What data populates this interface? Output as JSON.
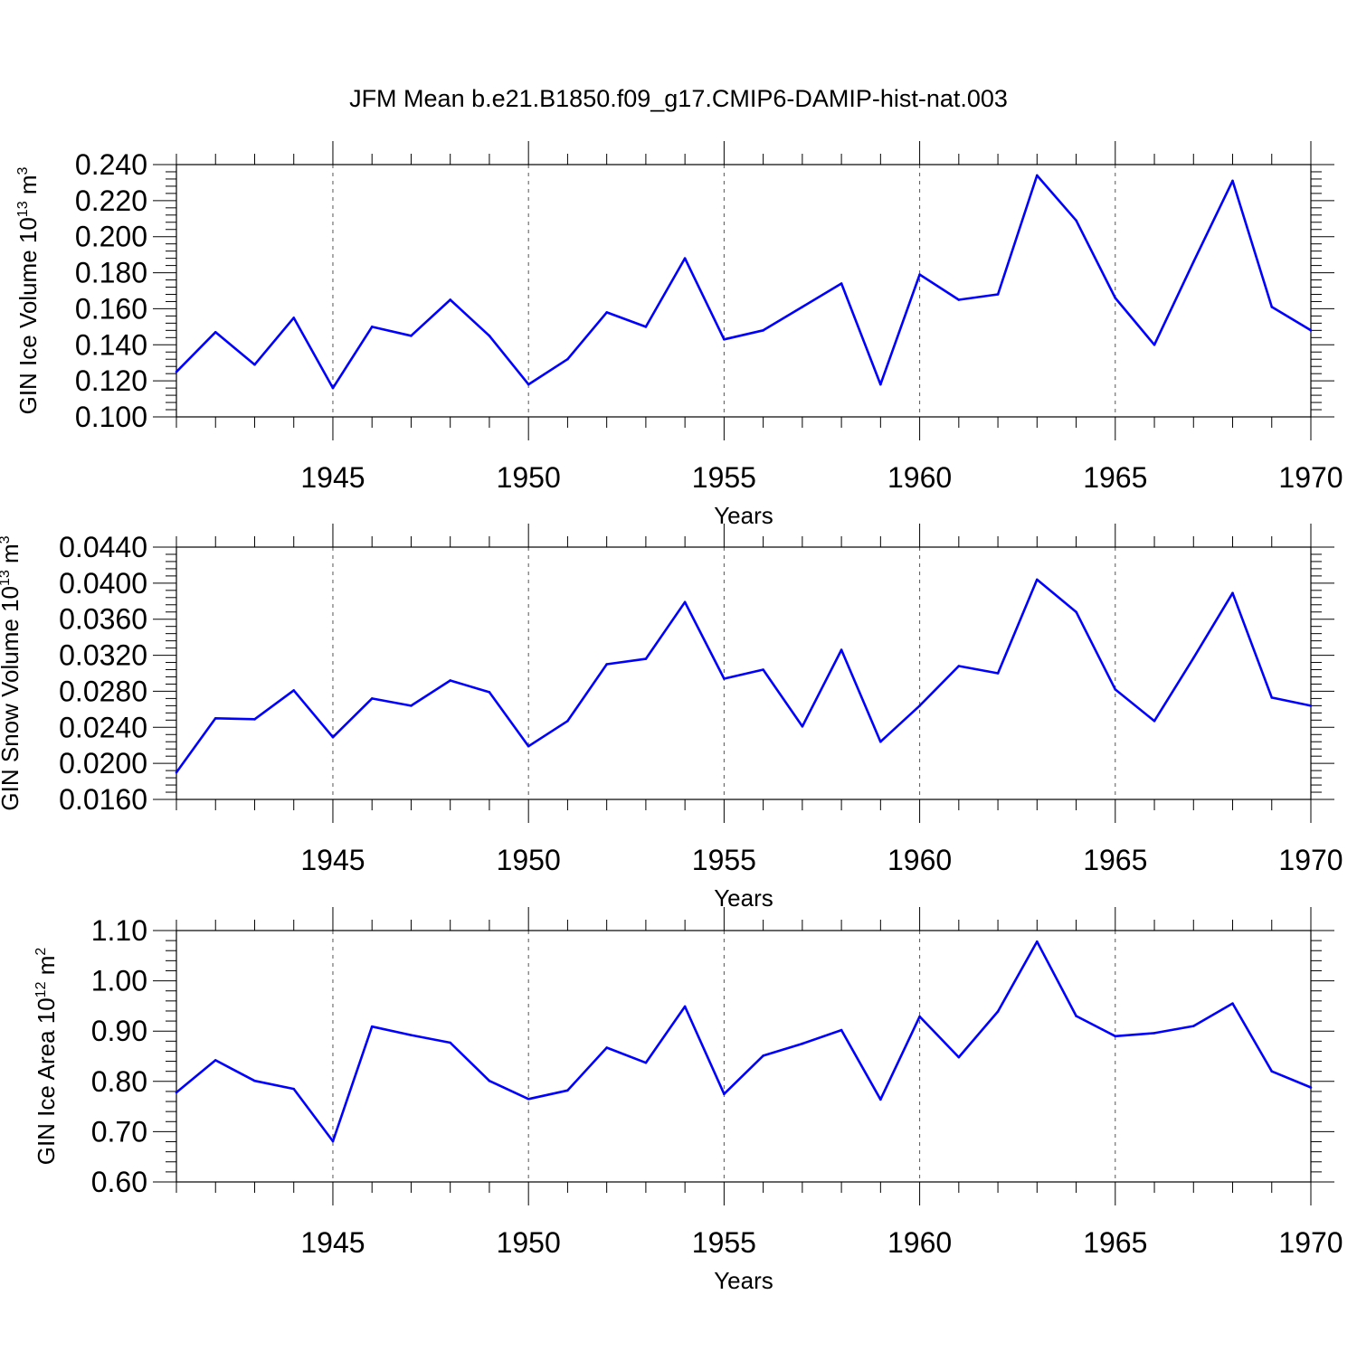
{
  "title": "JFM Mean b.e21.B1850.f09_g17.CMIP6-DAMIP-hist-nat.003",
  "line_color": "#0000ff",
  "chart_data": [
    {
      "type": "line",
      "ylabel_main": "GIN Ice Volume 10",
      "ylabel_exp": "13",
      "ylabel_unit": "m",
      "ylabel_unit_exp": "3",
      "xlabel": "Years",
      "xlim": [
        1941,
        1970
      ],
      "ylim": [
        0.1,
        0.24
      ],
      "yticks": [
        0.1,
        0.12,
        0.14,
        0.16,
        0.18,
        0.2,
        0.22,
        0.24
      ],
      "ytick_labels": [
        "0.100",
        "0.120",
        "0.140",
        "0.160",
        "0.180",
        "0.200",
        "0.220",
        "0.240"
      ],
      "xticks": [
        1945,
        1950,
        1955,
        1960,
        1965,
        1970
      ],
      "xtick_labels": [
        "1945",
        "1950",
        "1955",
        "1960",
        "1965",
        "1970"
      ],
      "x": [
        1941,
        1942,
        1943,
        1944,
        1945,
        1946,
        1947,
        1948,
        1949,
        1950,
        1951,
        1952,
        1953,
        1954,
        1955,
        1956,
        1957,
        1958,
        1959,
        1960,
        1961,
        1962,
        1963,
        1964,
        1965,
        1966,
        1967,
        1968,
        1969,
        1970
      ],
      "values": [
        0.125,
        0.147,
        0.129,
        0.155,
        0.116,
        0.15,
        0.145,
        0.165,
        0.145,
        0.118,
        0.132,
        0.158,
        0.15,
        0.188,
        0.143,
        0.148,
        0.161,
        0.174,
        0.118,
        0.179,
        0.165,
        0.168,
        0.234,
        0.209,
        0.166,
        0.14,
        0.186,
        0.231,
        0.161,
        0.148
      ]
    },
    {
      "type": "line",
      "ylabel_main": "GIN Snow Volume 10",
      "ylabel_exp": "13",
      "ylabel_unit": "m",
      "ylabel_unit_exp": "3",
      "xlabel": "Years",
      "xlim": [
        1941,
        1970
      ],
      "ylim": [
        0.016,
        0.044
      ],
      "yticks": [
        0.016,
        0.02,
        0.024,
        0.028,
        0.032,
        0.036,
        0.04,
        0.044
      ],
      "ytick_labels": [
        "0.0160",
        "0.0200",
        "0.0240",
        "0.0280",
        "0.0320",
        "0.0360",
        "0.0400",
        "0.0440"
      ],
      "xticks": [
        1945,
        1950,
        1955,
        1960,
        1965,
        1970
      ],
      "xtick_labels": [
        "1945",
        "1950",
        "1955",
        "1960",
        "1965",
        "1970"
      ],
      "x": [
        1941,
        1942,
        1943,
        1944,
        1945,
        1946,
        1947,
        1948,
        1949,
        1950,
        1951,
        1952,
        1953,
        1954,
        1955,
        1956,
        1957,
        1958,
        1959,
        1960,
        1961,
        1962,
        1963,
        1964,
        1965,
        1966,
        1967,
        1968,
        1969,
        1970
      ],
      "values": [
        0.019,
        0.025,
        0.0249,
        0.0281,
        0.0229,
        0.0272,
        0.0264,
        0.0292,
        0.0279,
        0.0219,
        0.0247,
        0.031,
        0.0316,
        0.0379,
        0.0294,
        0.0304,
        0.0241,
        0.0326,
        0.0224,
        0.0264,
        0.0308,
        0.03,
        0.0404,
        0.0368,
        0.0282,
        0.0247,
        0.0317,
        0.0389,
        0.0273,
        0.0264
      ]
    },
    {
      "type": "line",
      "ylabel_main": "GIN Ice Area 10",
      "ylabel_exp": "12",
      "ylabel_unit": "m",
      "ylabel_unit_exp": "2",
      "xlabel": "Years",
      "xlim": [
        1941,
        1970
      ],
      "ylim": [
        0.6,
        1.1
      ],
      "yticks": [
        0.6,
        0.7,
        0.8,
        0.9,
        1.0,
        1.1
      ],
      "ytick_labels": [
        "0.60",
        "0.70",
        "0.80",
        "0.90",
        "1.00",
        "1.10"
      ],
      "xticks": [
        1945,
        1950,
        1955,
        1960,
        1965,
        1970
      ],
      "xtick_labels": [
        "1945",
        "1950",
        "1955",
        "1960",
        "1965",
        "1970"
      ],
      "x": [
        1941,
        1942,
        1943,
        1944,
        1945,
        1946,
        1947,
        1948,
        1949,
        1950,
        1951,
        1952,
        1953,
        1954,
        1955,
        1956,
        1957,
        1958,
        1959,
        1960,
        1961,
        1962,
        1963,
        1964,
        1965,
        1966,
        1967,
        1968,
        1969,
        1970
      ],
      "values": [
        0.778,
        0.842,
        0.801,
        0.785,
        0.681,
        0.909,
        0.892,
        0.877,
        0.801,
        0.765,
        0.782,
        0.867,
        0.837,
        0.949,
        0.775,
        0.851,
        0.875,
        0.902,
        0.764,
        0.929,
        0.848,
        0.939,
        1.078,
        0.93,
        0.89,
        0.896,
        0.91,
        0.955,
        0.82,
        0.788
      ]
    }
  ]
}
